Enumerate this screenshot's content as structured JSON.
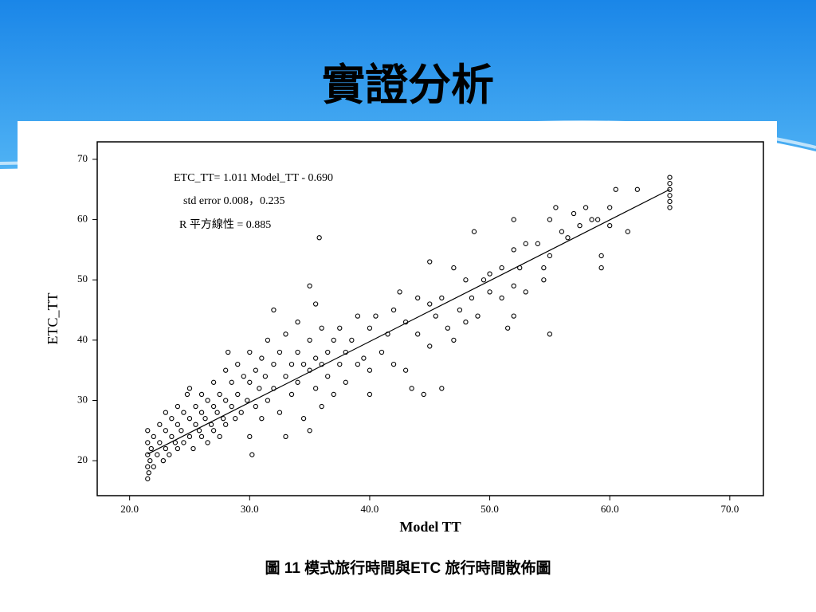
{
  "slide_title": "實證分析",
  "caption": "圖 11 模式旅行時間與ETC 旅行時間散佈圖",
  "chart_data": {
    "type": "scatter",
    "x_label": "Model TT",
    "y_label": "ETC_TT",
    "annotations": [
      "ETC_TT= 1.011 Model_TT - 0.690",
      "std error 0.008，0.235",
      "R 平方線性 = 0.885"
    ],
    "xlim": [
      17.3,
      72.8
    ],
    "ylim": [
      14.2,
      72.9
    ],
    "xticks": [
      {
        "value": 20,
        "label": "20.0"
      },
      {
        "value": 30,
        "label": "30.0"
      },
      {
        "value": 40,
        "label": "40.0"
      },
      {
        "value": 50,
        "label": "50.0"
      },
      {
        "value": 60,
        "label": "60.0"
      },
      {
        "value": 70,
        "label": "70.0"
      }
    ],
    "yticks": [
      20,
      30,
      40,
      50,
      60,
      70
    ],
    "color": "#000000",
    "fit": {
      "x": [
        21.5,
        65.0
      ],
      "y": [
        21.1,
        65.0
      ]
    },
    "x": [
      21.5,
      21.5,
      21.5,
      21.5,
      21.5,
      21.6,
      21.7,
      21.8,
      22,
      22,
      22.3,
      22.5,
      22.5,
      22.8,
      23,
      23,
      23,
      23.3,
      23.5,
      23.5,
      23.8,
      24,
      24,
      24,
      24.3,
      24.5,
      24.5,
      24.8,
      25,
      25,
      25,
      25.3,
      25.5,
      25.5,
      25.8,
      26,
      26,
      26,
      26.3,
      26.5,
      26.5,
      26.8,
      27,
      27,
      27,
      27.3,
      27.5,
      27.5,
      27.8,
      28,
      28,
      28,
      28.2,
      28.5,
      28.5,
      28.8,
      29,
      29,
      29.3,
      29.5,
      29.8,
      30,
      30,
      30,
      30.2,
      30.5,
      30.5,
      30.8,
      31,
      31,
      31.3,
      31.5,
      31.5,
      32,
      32,
      32,
      32.5,
      32.5,
      33,
      33,
      33,
      33.5,
      33.5,
      34,
      34,
      34,
      34.5,
      34.5,
      35,
      35,
      35,
      35,
      35.5,
      35.5,
      35.5,
      35.8,
      36,
      36,
      36,
      36.5,
      36.5,
      37,
      37,
      37.5,
      37.5,
      38,
      38,
      38.5,
      39,
      39,
      39.5,
      40,
      40,
      40,
      40.5,
      41,
      41.5,
      42,
      42,
      42.5,
      43,
      43,
      43.5,
      44,
      44,
      44.5,
      45,
      45,
      45,
      45.5,
      46,
      46,
      46.5,
      47,
      47,
      47.5,
      48,
      48,
      48.5,
      48.7,
      49,
      49.5,
      50,
      50,
      51,
      51,
      51.5,
      52,
      52,
      52,
      52,
      52.5,
      53,
      53,
      54,
      54.5,
      54.5,
      55,
      55,
      55,
      55.5,
      56,
      56.5,
      57,
      57.5,
      58,
      58.5,
      59,
      59.3,
      59.3,
      60,
      60,
      60.5,
      61.5,
      62.3,
      65,
      65,
      65,
      65,
      65,
      65
    ],
    "values": [
      17,
      19,
      21,
      23,
      25,
      18,
      20,
      22,
      24,
      19,
      21,
      23,
      26,
      20,
      22,
      25,
      28,
      21,
      24,
      27,
      23,
      22,
      26,
      29,
      25,
      23,
      28,
      31,
      24,
      27,
      32,
      22,
      26,
      29,
      25,
      24,
      28,
      31,
      27,
      23,
      30,
      26,
      25,
      29,
      33,
      28,
      24,
      31,
      27,
      26,
      30,
      35,
      38,
      29,
      33,
      27,
      31,
      36,
      28,
      34,
      30,
      33,
      38,
      24,
      21,
      35,
      29,
      32,
      37,
      27,
      34,
      40,
      30,
      36,
      32,
      45,
      38,
      28,
      34,
      41,
      24,
      36,
      31,
      38,
      33,
      43,
      36,
      27,
      35,
      40,
      49,
      25,
      37,
      32,
      46,
      57,
      36,
      42,
      29,
      38,
      34,
      40,
      31,
      36,
      42,
      38,
      33,
      40,
      36,
      44,
      37,
      42,
      35,
      31,
      44,
      38,
      41,
      45,
      36,
      48,
      43,
      35,
      32,
      41,
      47,
      31,
      46,
      39,
      53,
      44,
      47,
      32,
      42,
      52,
      40,
      45,
      50,
      43,
      47,
      58,
      44,
      50,
      48,
      51,
      52,
      47,
      42,
      55,
      60,
      49,
      44,
      52,
      56,
      48,
      56,
      52,
      50,
      60,
      54,
      41,
      62,
      58,
      57,
      61,
      59,
      62,
      60,
      60,
      54,
      52,
      62,
      59,
      65,
      58,
      65,
      62,
      63,
      64,
      65,
      66,
      67
    ]
  }
}
